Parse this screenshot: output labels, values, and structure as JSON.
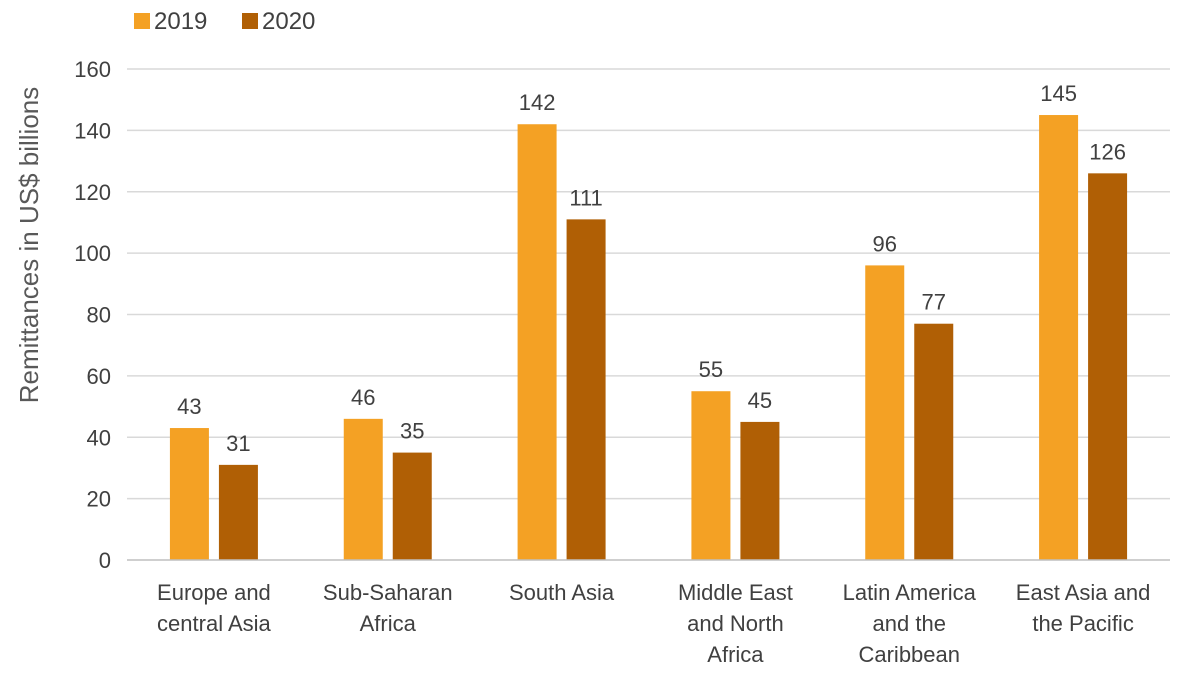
{
  "chart_data": {
    "type": "bar",
    "categories": [
      [
        "Europe and",
        "central Asia"
      ],
      [
        "Sub-Saharan",
        "Africa"
      ],
      [
        "South Asia"
      ],
      [
        "Middle East",
        "and North",
        "Africa"
      ],
      [
        "Latin America",
        "and the",
        "Caribbean"
      ],
      [
        "East Asia and",
        "the Pacific"
      ]
    ],
    "series": [
      {
        "name": "2019",
        "color": "#f4a124",
        "values": [
          43,
          46,
          142,
          55,
          96,
          145
        ]
      },
      {
        "name": "2020",
        "color": "#b05f05",
        "values": [
          31,
          35,
          111,
          45,
          77,
          126
        ]
      }
    ],
    "ylabel": "Remittances in US$ billions",
    "ylim": [
      0,
      160
    ],
    "yticks": [
      0,
      20,
      40,
      60,
      80,
      100,
      120,
      140,
      160
    ],
    "grid": true,
    "legend": "top-left",
    "data_labels": true
  }
}
